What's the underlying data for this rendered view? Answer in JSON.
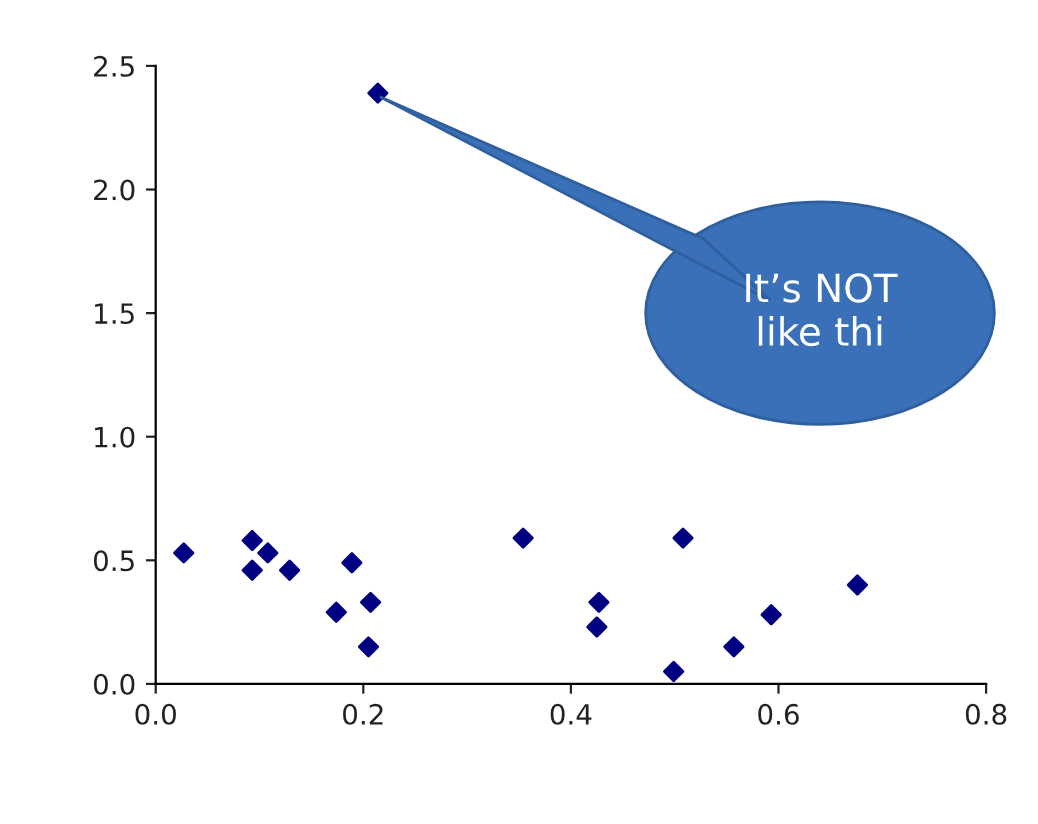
{
  "chart_data": {
    "type": "scatter",
    "marker": "diamond",
    "grid": false,
    "x": [
      0.027,
      0.093,
      0.093,
      0.108,
      0.129,
      0.174,
      0.189,
      0.207,
      0.205,
      0.354,
      0.427,
      0.425,
      0.508,
      0.499,
      0.557,
      0.593,
      0.676,
      0.214
    ],
    "series": [
      {
        "color": "#000080",
        "values": [
          0.53,
          0.58,
          0.46,
          0.53,
          0.46,
          0.29,
          0.49,
          0.33,
          0.15,
          0.59,
          0.33,
          0.23,
          0.59,
          0.05,
          0.15,
          0.28,
          0.4,
          2.39
        ]
      }
    ],
    "xlim": [
      0,
      0.8
    ],
    "xticks": [
      {
        "value": 0,
        "label": "0.0"
      },
      0.2,
      0.4,
      0.6,
      0.8
    ],
    "ylim": [
      0,
      2.5
    ],
    "yticks": [
      {
        "value": 0,
        "label": "0.0"
      },
      0.5,
      {
        "value": 1,
        "label": "1.0"
      },
      1.5,
      {
        "value": 2,
        "label": "2.0"
      },
      2.5
    ],
    "annotations": [
      "It’s NOT\nlike thi"
    ]
  }
}
